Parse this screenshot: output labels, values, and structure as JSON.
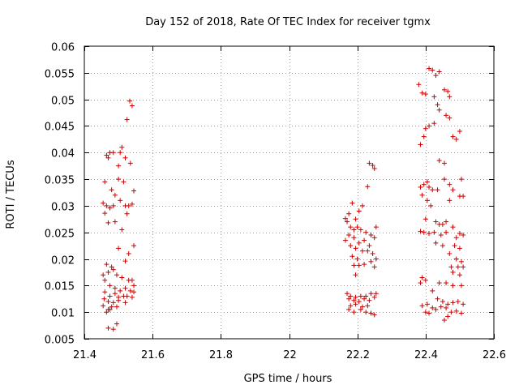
{
  "chart_data": {
    "type": "scatter",
    "title": "Day 152 of 2018, Rate Of TEC Index for receiver tgmx",
    "xlabel": "GPS time / hours",
    "ylabel": "ROTI / TECUs",
    "xlim": [
      21.4,
      22.6
    ],
    "ylim": [
      0.005,
      0.06
    ],
    "xticks": [
      21.4,
      21.6,
      21.8,
      22.0,
      22.2,
      22.4,
      22.6
    ],
    "xtick_labels": [
      "21.4",
      "21.6",
      "21.8",
      "22",
      "22.2",
      "22.4",
      "22.6"
    ],
    "yticks": [
      0.005,
      0.01,
      0.015,
      0.02,
      0.025,
      0.03,
      0.035,
      0.04,
      0.045,
      0.05,
      0.055,
      0.06
    ],
    "ytick_labels": [
      "0.005",
      "0.01",
      "0.015",
      "0.02",
      "0.025",
      "0.03",
      "0.035",
      "0.04",
      "0.045",
      "0.05",
      "0.055",
      "0.06"
    ],
    "grid": true,
    "marker": "+",
    "marker_color": "#cc0000",
    "series": [
      {
        "name": "ROTI",
        "points": [
          [
            21.465,
            0.0395
          ],
          [
            21.475,
            0.04
          ],
          [
            21.485,
            0.04
          ],
          [
            21.47,
            0.039
          ],
          [
            21.5,
            0.0375
          ],
          [
            21.505,
            0.04
          ],
          [
            21.51,
            0.041
          ],
          [
            21.52,
            0.039
          ],
          [
            21.535,
            0.038
          ],
          [
            21.525,
            0.0462
          ],
          [
            21.533,
            0.0497
          ],
          [
            21.54,
            0.0488
          ],
          [
            21.46,
            0.0345
          ],
          [
            21.48,
            0.033
          ],
          [
            21.49,
            0.032
          ],
          [
            21.5,
            0.035
          ],
          [
            21.515,
            0.0345
          ],
          [
            21.455,
            0.0305
          ],
          [
            21.465,
            0.03
          ],
          [
            21.475,
            0.0296
          ],
          [
            21.485,
            0.03
          ],
          [
            21.505,
            0.031
          ],
          [
            21.52,
            0.03
          ],
          [
            21.53,
            0.03
          ],
          [
            21.545,
            0.0328
          ],
          [
            21.54,
            0.0303
          ],
          [
            21.46,
            0.0286
          ],
          [
            21.47,
            0.0268
          ],
          [
            21.49,
            0.027
          ],
          [
            21.51,
            0.0255
          ],
          [
            21.525,
            0.0285
          ],
          [
            21.545,
            0.0225
          ],
          [
            21.5,
            0.022
          ],
          [
            21.53,
            0.021
          ],
          [
            21.52,
            0.0196
          ],
          [
            21.465,
            0.019
          ],
          [
            21.48,
            0.0185
          ],
          [
            21.455,
            0.017
          ],
          [
            21.47,
            0.0175
          ],
          [
            21.485,
            0.018
          ],
          [
            21.495,
            0.017
          ],
          [
            21.51,
            0.0165
          ],
          [
            21.53,
            0.016
          ],
          [
            21.46,
            0.016
          ],
          [
            21.475,
            0.015
          ],
          [
            21.49,
            0.0145
          ],
          [
            21.505,
            0.014
          ],
          [
            21.52,
            0.0145
          ],
          [
            21.535,
            0.014
          ],
          [
            21.545,
            0.0138
          ],
          [
            21.46,
            0.0138
          ],
          [
            21.475,
            0.013
          ],
          [
            21.49,
            0.0135
          ],
          [
            21.5,
            0.0128
          ],
          [
            21.515,
            0.013
          ],
          [
            21.525,
            0.013
          ],
          [
            21.54,
            0.0128
          ],
          [
            21.458,
            0.0125
          ],
          [
            21.47,
            0.012
          ],
          [
            21.485,
            0.0118
          ],
          [
            21.5,
            0.0122
          ],
          [
            21.52,
            0.0118
          ],
          [
            21.455,
            0.0112
          ],
          [
            21.47,
            0.0105
          ],
          [
            21.48,
            0.011
          ],
          [
            21.495,
            0.011
          ],
          [
            21.465,
            0.01
          ],
          [
            21.475,
            0.0105
          ],
          [
            21.47,
            0.007
          ],
          [
            21.485,
            0.0068
          ],
          [
            21.495,
            0.0078
          ],
          [
            21.54,
            0.016
          ],
          [
            21.545,
            0.015
          ],
          [
            22.165,
            0.0276
          ],
          [
            22.175,
            0.0285
          ],
          [
            22.185,
            0.0305
          ],
          [
            22.195,
            0.0275
          ],
          [
            22.205,
            0.029
          ],
          [
            22.215,
            0.03
          ],
          [
            22.23,
            0.0336
          ],
          [
            22.235,
            0.038
          ],
          [
            22.245,
            0.0376
          ],
          [
            22.25,
            0.037
          ],
          [
            22.17,
            0.027
          ],
          [
            22.18,
            0.026
          ],
          [
            22.19,
            0.0255
          ],
          [
            22.2,
            0.026
          ],
          [
            22.21,
            0.0255
          ],
          [
            22.225,
            0.025
          ],
          [
            22.24,
            0.0245
          ],
          [
            22.255,
            0.026
          ],
          [
            22.165,
            0.0235
          ],
          [
            22.175,
            0.0245
          ],
          [
            22.19,
            0.024
          ],
          [
            22.205,
            0.023
          ],
          [
            22.22,
            0.0235
          ],
          [
            22.235,
            0.0225
          ],
          [
            22.25,
            0.024
          ],
          [
            22.18,
            0.0225
          ],
          [
            22.195,
            0.022
          ],
          [
            22.215,
            0.0215
          ],
          [
            22.23,
            0.0215
          ],
          [
            22.245,
            0.021
          ],
          [
            22.255,
            0.02
          ],
          [
            22.185,
            0.0205
          ],
          [
            22.2,
            0.02
          ],
          [
            22.24,
            0.0195
          ],
          [
            22.25,
            0.0185
          ],
          [
            22.19,
            0.0188
          ],
          [
            22.205,
            0.0188
          ],
          [
            22.22,
            0.019
          ],
          [
            22.195,
            0.017
          ],
          [
            22.17,
            0.0135
          ],
          [
            22.18,
            0.013
          ],
          [
            22.195,
            0.0128
          ],
          [
            22.21,
            0.013
          ],
          [
            22.225,
            0.013
          ],
          [
            22.24,
            0.0135
          ],
          [
            22.255,
            0.0135
          ],
          [
            22.175,
            0.0125
          ],
          [
            22.19,
            0.0122
          ],
          [
            22.205,
            0.012
          ],
          [
            22.22,
            0.0125
          ],
          [
            22.235,
            0.0122
          ],
          [
            22.25,
            0.0128
          ],
          [
            22.18,
            0.0112
          ],
          [
            22.195,
            0.0115
          ],
          [
            22.215,
            0.011
          ],
          [
            22.23,
            0.0112
          ],
          [
            22.175,
            0.0105
          ],
          [
            22.19,
            0.01
          ],
          [
            22.21,
            0.0105
          ],
          [
            22.225,
            0.01
          ],
          [
            22.24,
            0.0098
          ],
          [
            22.25,
            0.0095
          ],
          [
            22.38,
            0.0528
          ],
          [
            22.39,
            0.0512
          ],
          [
            22.4,
            0.051
          ],
          [
            22.41,
            0.0558
          ],
          [
            22.42,
            0.0555
          ],
          [
            22.43,
            0.0545
          ],
          [
            22.44,
            0.0552
          ],
          [
            22.455,
            0.0518
          ],
          [
            22.465,
            0.0515
          ],
          [
            22.47,
            0.0505
          ],
          [
            22.425,
            0.0505
          ],
          [
            22.435,
            0.049
          ],
          [
            22.44,
            0.048
          ],
          [
            22.46,
            0.047
          ],
          [
            22.47,
            0.0465
          ],
          [
            22.41,
            0.045
          ],
          [
            22.4,
            0.0445
          ],
          [
            22.425,
            0.0455
          ],
          [
            22.385,
            0.0415
          ],
          [
            22.395,
            0.043
          ],
          [
            22.48,
            0.043
          ],
          [
            22.49,
            0.0425
          ],
          [
            22.5,
            0.044
          ],
          [
            22.44,
            0.0385
          ],
          [
            22.455,
            0.038
          ],
          [
            22.395,
            0.034
          ],
          [
            22.405,
            0.0345
          ],
          [
            22.385,
            0.0335
          ],
          [
            22.41,
            0.0335
          ],
          [
            22.42,
            0.033
          ],
          [
            22.435,
            0.033
          ],
          [
            22.455,
            0.035
          ],
          [
            22.47,
            0.034
          ],
          [
            22.48,
            0.033
          ],
          [
            22.505,
            0.035
          ],
          [
            22.39,
            0.032
          ],
          [
            22.405,
            0.031
          ],
          [
            22.415,
            0.03
          ],
          [
            22.47,
            0.031
          ],
          [
            22.5,
            0.0318
          ],
          [
            22.51,
            0.0318
          ],
          [
            22.4,
            0.0275
          ],
          [
            22.43,
            0.027
          ],
          [
            22.44,
            0.0265
          ],
          [
            22.45,
            0.0265
          ],
          [
            22.46,
            0.027
          ],
          [
            22.48,
            0.026
          ],
          [
            22.49,
            0.024
          ],
          [
            22.385,
            0.0252
          ],
          [
            22.395,
            0.025
          ],
          [
            22.41,
            0.0248
          ],
          [
            22.425,
            0.025
          ],
          [
            22.445,
            0.0245
          ],
          [
            22.46,
            0.025
          ],
          [
            22.5,
            0.0248
          ],
          [
            22.51,
            0.0245
          ],
          [
            22.43,
            0.023
          ],
          [
            22.45,
            0.0225
          ],
          [
            22.485,
            0.0225
          ],
          [
            22.5,
            0.022
          ],
          [
            22.47,
            0.021
          ],
          [
            22.49,
            0.02
          ],
          [
            22.505,
            0.0195
          ],
          [
            22.475,
            0.0185
          ],
          [
            22.495,
            0.0185
          ],
          [
            22.51,
            0.0185
          ],
          [
            22.48,
            0.0175
          ],
          [
            22.5,
            0.017
          ],
          [
            22.39,
            0.0165
          ],
          [
            22.4,
            0.016
          ],
          [
            22.385,
            0.0155
          ],
          [
            22.44,
            0.0155
          ],
          [
            22.46,
            0.0155
          ],
          [
            22.48,
            0.015
          ],
          [
            22.505,
            0.015
          ],
          [
            22.42,
            0.014
          ],
          [
            22.435,
            0.0125
          ],
          [
            22.45,
            0.012
          ],
          [
            22.465,
            0.0115
          ],
          [
            22.48,
            0.0118
          ],
          [
            22.495,
            0.012
          ],
          [
            22.51,
            0.0115
          ],
          [
            22.39,
            0.0112
          ],
          [
            22.405,
            0.0115
          ],
          [
            22.42,
            0.0108
          ],
          [
            22.43,
            0.0105
          ],
          [
            22.445,
            0.011
          ],
          [
            22.46,
            0.0108
          ],
          [
            22.475,
            0.01
          ],
          [
            22.49,
            0.0102
          ],
          [
            22.505,
            0.0098
          ],
          [
            22.4,
            0.01
          ],
          [
            22.41,
            0.0098
          ],
          [
            22.455,
            0.0085
          ],
          [
            22.465,
            0.0092
          ]
        ]
      }
    ]
  }
}
